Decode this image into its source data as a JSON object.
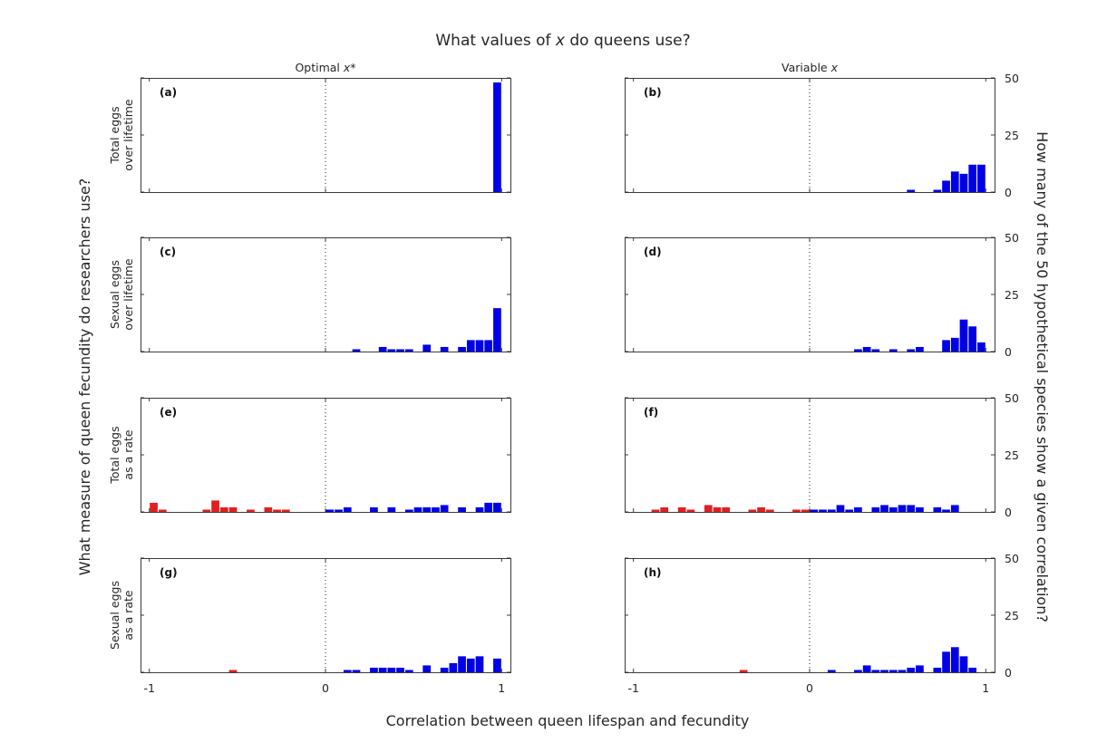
{
  "title_pre": "What values of ",
  "title_var": "x",
  "title_post": " do queens use?",
  "col1_pre": "Optimal ",
  "col1_var": "x*",
  "col2_pre": "Variable ",
  "col2_var": "x",
  "left_label": "What measure of queen fecundity do researchers use?",
  "right_label": "How many of the 50 hypothetical species show a given correlation?",
  "xlabel": "Correlation between queen lifespan and fecundity",
  "row_labels": [
    [
      "Total eggs",
      "over lifetime"
    ],
    [
      "Sexual eggs",
      "over lifetime"
    ],
    [
      "Total eggs",
      "as a rate"
    ],
    [
      "Sexual eggs",
      "as a rate"
    ]
  ],
  "x_ticks": [
    "-1",
    "0",
    "1"
  ],
  "y_ticks": [
    "0",
    "25",
    "50"
  ],
  "colors": {
    "positive": "#0000e6",
    "negative": "#e02020",
    "axis": "#262626"
  },
  "chart_data": [
    {
      "type": "bar",
      "panel": "(a)",
      "xlim": [
        -1.05,
        1.05
      ],
      "ylim": [
        0,
        50
      ],
      "bin_width": 0.05,
      "bins": [
        [
          0.975,
          48
        ]
      ]
    },
    {
      "type": "bar",
      "panel": "(b)",
      "xlim": [
        -1.05,
        1.05
      ],
      "ylim": [
        0,
        50
      ],
      "bin_width": 0.05,
      "bins": [
        [
          0.575,
          1
        ],
        [
          0.725,
          1
        ],
        [
          0.775,
          5
        ],
        [
          0.825,
          9
        ],
        [
          0.875,
          8
        ],
        [
          0.925,
          12
        ],
        [
          0.975,
          12
        ]
      ]
    },
    {
      "type": "bar",
      "panel": "(c)",
      "xlim": [
        -1.05,
        1.05
      ],
      "ylim": [
        0,
        50
      ],
      "bin_width": 0.05,
      "bins": [
        [
          0.175,
          1
        ],
        [
          0.325,
          2
        ],
        [
          0.375,
          1
        ],
        [
          0.425,
          1
        ],
        [
          0.475,
          1
        ],
        [
          0.575,
          3
        ],
        [
          0.675,
          2
        ],
        [
          0.775,
          2
        ],
        [
          0.825,
          5
        ],
        [
          0.875,
          5
        ],
        [
          0.925,
          5
        ],
        [
          0.975,
          19
        ]
      ]
    },
    {
      "type": "bar",
      "panel": "(d)",
      "xlim": [
        -1.05,
        1.05
      ],
      "ylim": [
        0,
        50
      ],
      "bin_width": 0.05,
      "bins": [
        [
          0.275,
          1
        ],
        [
          0.325,
          2
        ],
        [
          0.375,
          1
        ],
        [
          0.475,
          1
        ],
        [
          0.575,
          1
        ],
        [
          0.625,
          2
        ],
        [
          0.775,
          5
        ],
        [
          0.825,
          6
        ],
        [
          0.875,
          14
        ],
        [
          0.925,
          11
        ],
        [
          0.975,
          4
        ]
      ]
    },
    {
      "type": "bar",
      "panel": "(e)",
      "xlim": [
        -1.05,
        1.05
      ],
      "ylim": [
        0,
        50
      ],
      "bin_width": 0.05,
      "bins": [
        [
          -0.975,
          4
        ],
        [
          -0.925,
          1
        ],
        [
          -0.675,
          1
        ],
        [
          -0.625,
          5
        ],
        [
          -0.575,
          2
        ],
        [
          -0.525,
          2
        ],
        [
          -0.425,
          1
        ],
        [
          -0.325,
          2
        ],
        [
          -0.275,
          1
        ],
        [
          -0.225,
          1
        ],
        [
          0.025,
          1
        ],
        [
          0.075,
          1
        ],
        [
          0.125,
          2
        ],
        [
          0.275,
          2
        ],
        [
          0.375,
          2
        ],
        [
          0.475,
          1
        ],
        [
          0.525,
          2
        ],
        [
          0.575,
          2
        ],
        [
          0.625,
          2
        ],
        [
          0.675,
          3
        ],
        [
          0.775,
          2
        ],
        [
          0.875,
          2
        ],
        [
          0.925,
          4
        ],
        [
          0.975,
          4
        ]
      ]
    },
    {
      "type": "bar",
      "panel": "(f)",
      "xlim": [
        -1.05,
        1.05
      ],
      "ylim": [
        0,
        50
      ],
      "bin_width": 0.05,
      "bins": [
        [
          -0.875,
          1
        ],
        [
          -0.825,
          2
        ],
        [
          -0.725,
          2
        ],
        [
          -0.675,
          1
        ],
        [
          -0.575,
          3
        ],
        [
          -0.525,
          2
        ],
        [
          -0.475,
          2
        ],
        [
          -0.325,
          1
        ],
        [
          -0.275,
          2
        ],
        [
          -0.225,
          1
        ],
        [
          -0.075,
          1
        ],
        [
          -0.025,
          1
        ],
        [
          0.025,
          1
        ],
        [
          0.075,
          1
        ],
        [
          0.125,
          1
        ],
        [
          0.175,
          3
        ],
        [
          0.225,
          1
        ],
        [
          0.275,
          2
        ],
        [
          0.375,
          2
        ],
        [
          0.425,
          3
        ],
        [
          0.475,
          2
        ],
        [
          0.525,
          3
        ],
        [
          0.575,
          3
        ],
        [
          0.625,
          2
        ],
        [
          0.725,
          2
        ],
        [
          0.775,
          1
        ],
        [
          0.825,
          3
        ]
      ]
    },
    {
      "type": "bar",
      "panel": "(g)",
      "xlim": [
        -1.05,
        1.05
      ],
      "ylim": [
        0,
        50
      ],
      "bin_width": 0.05,
      "bins": [
        [
          -0.525,
          1
        ],
        [
          0.125,
          1
        ],
        [
          0.175,
          1
        ],
        [
          0.275,
          2
        ],
        [
          0.325,
          2
        ],
        [
          0.375,
          2
        ],
        [
          0.425,
          2
        ],
        [
          0.475,
          1
        ],
        [
          0.575,
          3
        ],
        [
          0.675,
          2
        ],
        [
          0.725,
          4
        ],
        [
          0.775,
          7
        ],
        [
          0.825,
          6
        ],
        [
          0.875,
          7
        ],
        [
          0.975,
          6
        ]
      ]
    },
    {
      "type": "bar",
      "panel": "(h)",
      "xlim": [
        -1.05,
        1.05
      ],
      "ylim": [
        0,
        50
      ],
      "bin_width": 0.05,
      "bins": [
        [
          -0.375,
          1
        ],
        [
          0.125,
          1
        ],
        [
          0.275,
          1
        ],
        [
          0.325,
          3
        ],
        [
          0.375,
          1
        ],
        [
          0.425,
          1
        ],
        [
          0.475,
          1
        ],
        [
          0.525,
          1
        ],
        [
          0.575,
          2
        ],
        [
          0.625,
          3
        ],
        [
          0.725,
          2
        ],
        [
          0.775,
          9
        ],
        [
          0.825,
          11
        ],
        [
          0.875,
          7
        ],
        [
          0.925,
          2
        ]
      ]
    }
  ]
}
